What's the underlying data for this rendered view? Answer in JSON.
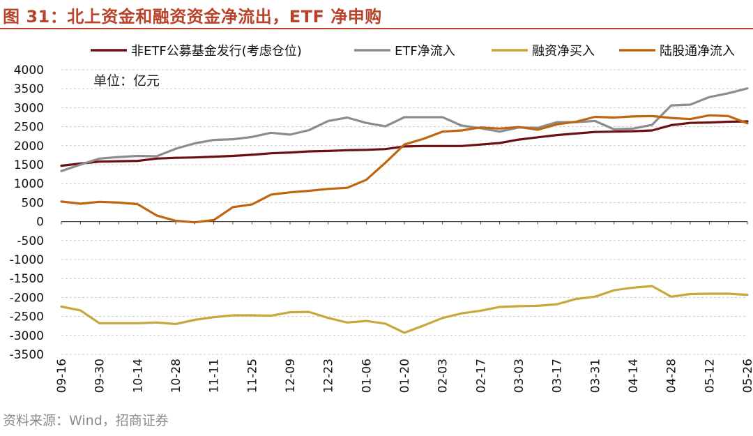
{
  "title": "图 31：北上资金和融资资金净流出，ETF 净申购",
  "source": "资料来源：Wind，招商证券",
  "chart_data": {
    "type": "line",
    "unit_note": "单位：亿元",
    "x": [
      "09-16",
      "09-23",
      "09-30",
      "10-07",
      "10-14",
      "10-21",
      "10-28",
      "11-04",
      "11-11",
      "11-18",
      "11-25",
      "12-02",
      "12-09",
      "12-16",
      "12-23",
      "12-30",
      "01-06",
      "01-13",
      "01-20",
      "01-27",
      "02-03",
      "02-10",
      "02-17",
      "02-24",
      "03-03",
      "03-10",
      "03-17",
      "03-24",
      "03-31",
      "04-07",
      "04-14",
      "04-21",
      "04-28",
      "05-05",
      "05-12",
      "05-19",
      "05-26"
    ],
    "x_tick_labels": [
      "09-16",
      "09-30",
      "10-14",
      "10-28",
      "11-11",
      "11-25",
      "12-09",
      "12-23",
      "01-06",
      "01-20",
      "02-03",
      "02-17",
      "03-03",
      "03-17",
      "03-31",
      "04-14",
      "04-28",
      "05-12",
      "05-26"
    ],
    "ylim": [
      -3500,
      4000
    ],
    "yticks": [
      4000,
      3500,
      3000,
      2500,
      2000,
      1500,
      1000,
      500,
      0,
      -500,
      -1000,
      -1500,
      -2000,
      -2500,
      -3000,
      -3500
    ],
    "grid": true,
    "legend_position": "top",
    "series": [
      {
        "name": "非ETF公募基金发行(考虑仓位)",
        "color": "#6b0f12",
        "values": [
          1470,
          1530,
          1580,
          1590,
          1600,
          1660,
          1680,
          1690,
          1710,
          1730,
          1760,
          1800,
          1820,
          1850,
          1860,
          1880,
          1890,
          1910,
          1980,
          1990,
          1990,
          1990,
          2030,
          2070,
          2160,
          2220,
          2280,
          2320,
          2360,
          2370,
          2380,
          2400,
          2540,
          2600,
          2610,
          2630,
          2640
        ]
      },
      {
        "name": "ETF净流入",
        "color": "#8c8c8c",
        "values": [
          1330,
          1500,
          1660,
          1700,
          1730,
          1720,
          1920,
          2060,
          2150,
          2170,
          2230,
          2340,
          2290,
          2410,
          2650,
          2740,
          2600,
          2510,
          2750,
          2750,
          2750,
          2530,
          2460,
          2370,
          2480,
          2470,
          2620,
          2620,
          2650,
          2430,
          2450,
          2550,
          3060,
          3080,
          3280,
          3380,
          3510
        ]
      },
      {
        "name": "融资净买入",
        "color": "#c6a83c",
        "values": [
          -2240,
          -2340,
          -2680,
          -2680,
          -2680,
          -2660,
          -2700,
          -2590,
          -2520,
          -2470,
          -2470,
          -2480,
          -2390,
          -2380,
          -2540,
          -2660,
          -2620,
          -2690,
          -2930,
          -2740,
          -2540,
          -2420,
          -2350,
          -2250,
          -2230,
          -2220,
          -2180,
          -2040,
          -1980,
          -1810,
          -1740,
          -1700,
          -1980,
          -1910,
          -1900,
          -1900,
          -1930
        ]
      },
      {
        "name": "陆股通净流入",
        "color": "#c0650f",
        "values": [
          530,
          470,
          520,
          500,
          460,
          160,
          20,
          -20,
          40,
          380,
          450,
          710,
          770,
          810,
          860,
          890,
          1100,
          1550,
          2030,
          2180,
          2370,
          2400,
          2480,
          2450,
          2490,
          2420,
          2560,
          2630,
          2760,
          2740,
          2770,
          2780,
          2730,
          2700,
          2800,
          2780,
          2590
        ]
      }
    ]
  }
}
